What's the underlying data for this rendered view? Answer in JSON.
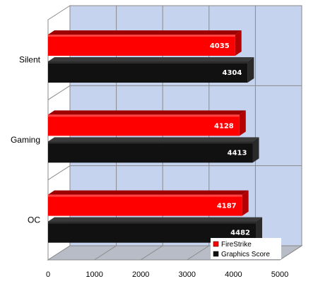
{
  "chart_data": {
    "type": "bar",
    "orientation": "horizontal",
    "categories": [
      "Silent",
      "Gaming",
      "OC"
    ],
    "series": [
      {
        "name": "FireStrike",
        "values": [
          4035,
          4128,
          4187
        ],
        "color": "#ff0000"
      },
      {
        "name": "Graphics Score",
        "values": [
          4304,
          4413,
          4482
        ],
        "color": "#111111"
      }
    ],
    "xlim": [
      0,
      5000
    ],
    "x_ticks": [
      "0",
      "1000",
      "2000",
      "3000",
      "4000",
      "5000"
    ],
    "grid": true,
    "legend_position": "bottom-right",
    "background_color": "#c5d3ee",
    "three_d": true
  }
}
